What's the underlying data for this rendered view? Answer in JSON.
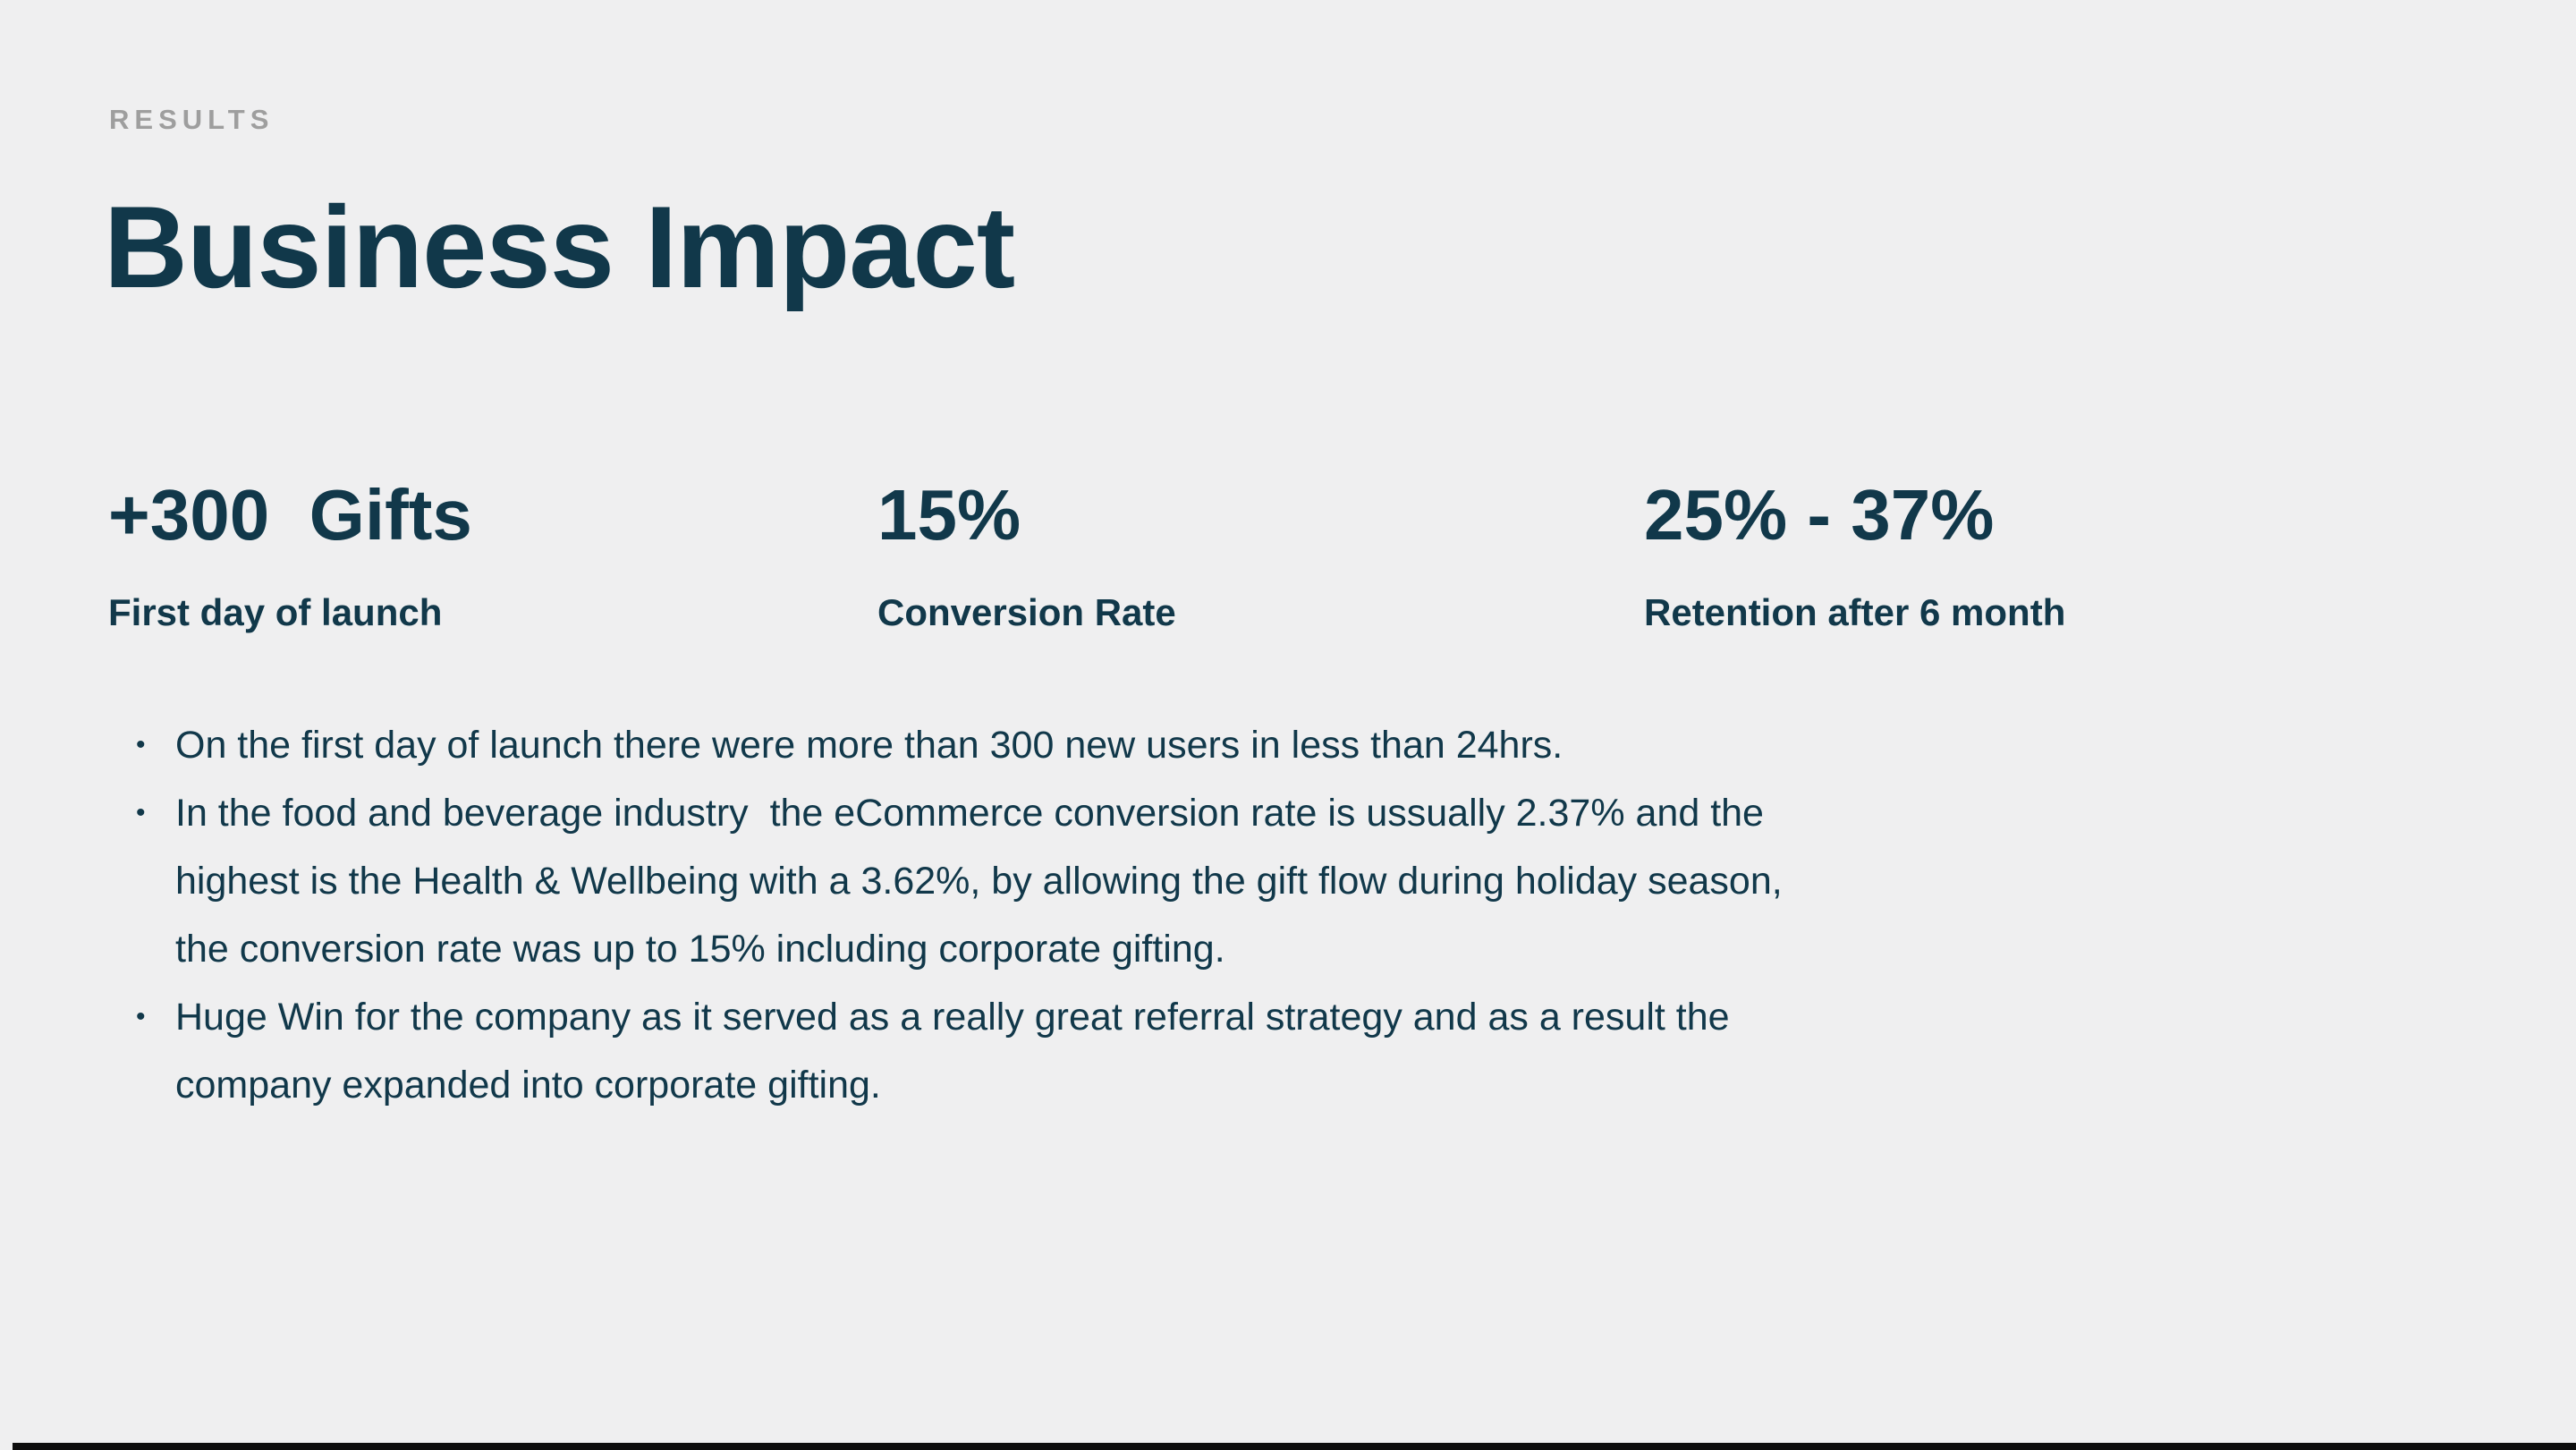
{
  "slide": {
    "eyebrow": "RESULTS",
    "title": "Business Impact",
    "bullet_char": "•",
    "colors": {
      "background": "#efeff0",
      "text_dark": "#11384a",
      "eyebrow_gray": "#9e9e9e",
      "footer_bar": "#0d0d0d"
    },
    "stats": [
      {
        "value": "+300  Gifts",
        "label": "First day of launch"
      },
      {
        "value": "15%",
        "label": "Conversion Rate"
      },
      {
        "value": "25% - 37%",
        "label": "Retention after 6 month"
      }
    ],
    "bullets": [
      {
        "text": "On the first day of launch there were more than 300 new users in less than 24hrs."
      },
      {
        "text": "In the food and beverage industry  the eCommerce conversion rate is ussually 2.37% and the\nhighest is the Health & Wellbeing with a 3.62%, by allowing the gift flow during holiday season,\nthe conversion rate was up to 15% including corporate gifting."
      },
      {
        "text": "Huge Win for the company as it served as a really great referral strategy and as a result the\ncompany expanded into corporate gifting."
      }
    ]
  }
}
